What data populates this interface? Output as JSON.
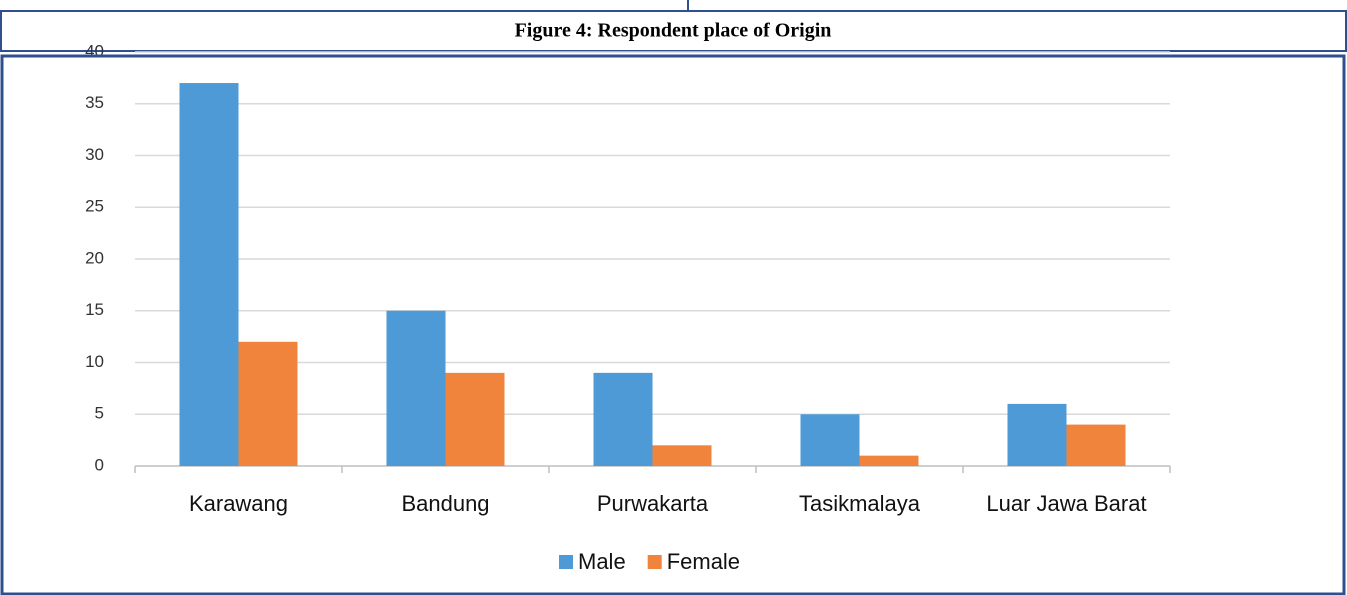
{
  "chart_data": {
    "type": "bar",
    "title": "Figure 4: Respondent place of Origin",
    "categories": [
      "Karawang",
      "Bandung",
      "Purwakarta",
      "Tasikmalaya",
      "Luar Jawa Barat"
    ],
    "series": [
      {
        "name": "Male",
        "color": "#4e9ad6",
        "values": [
          37,
          15,
          9,
          5,
          6
        ]
      },
      {
        "name": "Female",
        "color": "#f0843c",
        "values": [
          12,
          9,
          2,
          1,
          4
        ]
      }
    ],
    "ylim": [
      0,
      40
    ],
    "yticks": [
      0,
      5,
      10,
      15,
      20,
      25,
      30,
      35,
      40
    ],
    "grid": true,
    "legend": "bottom"
  }
}
